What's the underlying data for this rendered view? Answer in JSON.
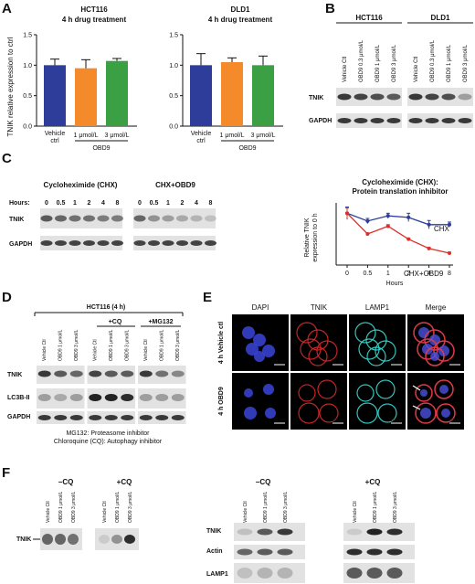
{
  "panels": {
    "A": "A",
    "B": "B",
    "C": "C",
    "D": "D",
    "E": "E",
    "F": "F"
  },
  "panel_a": {
    "ylabel": "TNIK relative expression to ctrl",
    "charts": [
      {
        "title_line1": "HCT116",
        "title_line2": "4 h drug treatment",
        "categories": [
          "Vehicle ctrl",
          "1 μmol/L",
          "3 μmol/L"
        ],
        "values": [
          1.0,
          0.95,
          1.07
        ],
        "errors": [
          0.1,
          0.14,
          0.04
        ],
        "colors": [
          "#2f3d9a",
          "#f58a2b",
          "#3aa043"
        ],
        "group_label": "OBD9"
      },
      {
        "title_line1": "DLD1",
        "title_line2": "4 h drug treatment",
        "categories": [
          "Vehicle ctrl",
          "1 μmol/L",
          "3 μmol/L"
        ],
        "values": [
          1.0,
          1.05,
          1.0
        ],
        "errors": [
          0.19,
          0.07,
          0.15
        ],
        "colors": [
          "#2f3d9a",
          "#f58a2b",
          "#3aa043"
        ],
        "group_label": "OBD9"
      }
    ],
    "yticks": [
      "0.0",
      "0.5",
      "1.0",
      "1.5"
    ]
  },
  "panel_b": {
    "groups": [
      "HCT116",
      "DLD1"
    ],
    "lanes": [
      "Vehicle Ctl",
      "OBD9 0.3 μmol/L",
      "OBD9 1 μmol/L",
      "OBD9 3 μmol/L"
    ],
    "rows": [
      "TNIK",
      "GAPDH"
    ]
  },
  "panel_c": {
    "blot_groups": [
      "Cycloheximide (CHX)",
      "CHX+OBD9"
    ],
    "hours_label": "Hours:",
    "hours": [
      "0",
      "0.5",
      "1",
      "2",
      "4",
      "8"
    ],
    "rows": [
      "TNIK",
      "GAPDH"
    ],
    "chart_title_line1": "Cycloheximide (CHX):",
    "chart_title_line2": "Protein translation inhibitor",
    "chart_ylabel_line1": "Relative TNIK",
    "chart_ylabel_line2": "expression to 0 h",
    "chart_xlabel": "Hours"
  },
  "chart_data": {
    "type": "line",
    "categories": [
      "0",
      "0.5",
      "1",
      "2",
      "4",
      "8"
    ],
    "series": [
      {
        "name": "CHX",
        "values": [
          1.0,
          0.85,
          0.95,
          0.92,
          0.78,
          0.78
        ],
        "errors": [
          0.12,
          0.05,
          0.05,
          0.08,
          0.08,
          0.05
        ],
        "color": "#2f3d9a"
      },
      {
        "name": "CHX+OBD9",
        "values": [
          1.0,
          0.6,
          0.75,
          0.5,
          0.32,
          0.23
        ],
        "errors": [
          0.1,
          0.02,
          0.03,
          0.02,
          0.02,
          0.02
        ],
        "color": "#d9302c"
      }
    ],
    "ylim": [
      0,
      1.2
    ]
  },
  "panel_d": {
    "header": "HCT116 (4 h)",
    "cq": "+CQ",
    "mg": "+MG132",
    "lanes": [
      "Vehicle Ctl",
      "OBD9 1 μmol/L",
      "OBD9 3 μmol/L",
      "Vehicle Ctl",
      "OBD9 1 μmol/L",
      "OBD9 3 μmol/L",
      "Vehicle Ctl",
      "OBD9 1 μmol/L",
      "OBD9 3 μmol/L"
    ],
    "rows": [
      "TNIK",
      "LC3B-II",
      "GAPDH"
    ],
    "footnote1": "MG132: Proteasome inhibitor",
    "footnote2": "Chloroquine (CQ): Autophagy inhibitor"
  },
  "panel_e": {
    "columns": [
      "DAPI",
      "TNIK",
      "LAMP1",
      "Merge"
    ],
    "rows": [
      "4 h Vehicle ctl",
      "4 h OBD9"
    ],
    "scale": "10 μm"
  },
  "panel_f": {
    "minus_cq": "−CQ",
    "plus_cq": "+CQ",
    "lanes": [
      "Vehicle Ctl",
      "OBD9 1 μmol/L",
      "OBD9 3 μmol/L",
      "Vehicle Ctl",
      "OBD9 1 μmol/L",
      "OBD9 3 μmol/L"
    ],
    "left_label": "TNIK",
    "rows": [
      "TNIK",
      "Actin",
      "LAMP1"
    ]
  }
}
